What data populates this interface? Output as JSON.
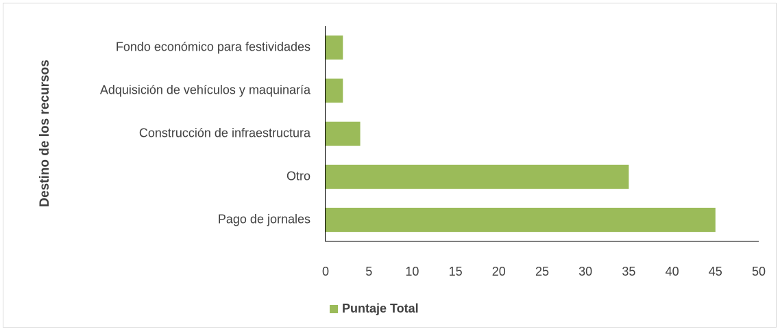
{
  "chart_data": {
    "type": "barh",
    "y_label": "Destino de los recursos",
    "categories": [
      "Fondo económico para festividades",
      "Adquisición de vehículos y maquinaría",
      "Construcción de infraestructura",
      "Otro",
      "Pago de jornales"
    ],
    "series": [
      {
        "name": "Puntaje Total",
        "color": "#9bbb59",
        "values": [
          2,
          2,
          4,
          35,
          45
        ]
      }
    ],
    "xlim": [
      0,
      50
    ],
    "xticks": [
      0,
      5,
      10,
      15,
      20,
      25,
      30,
      35,
      40,
      45,
      50
    ],
    "grid": false,
    "legend": "bottom"
  }
}
